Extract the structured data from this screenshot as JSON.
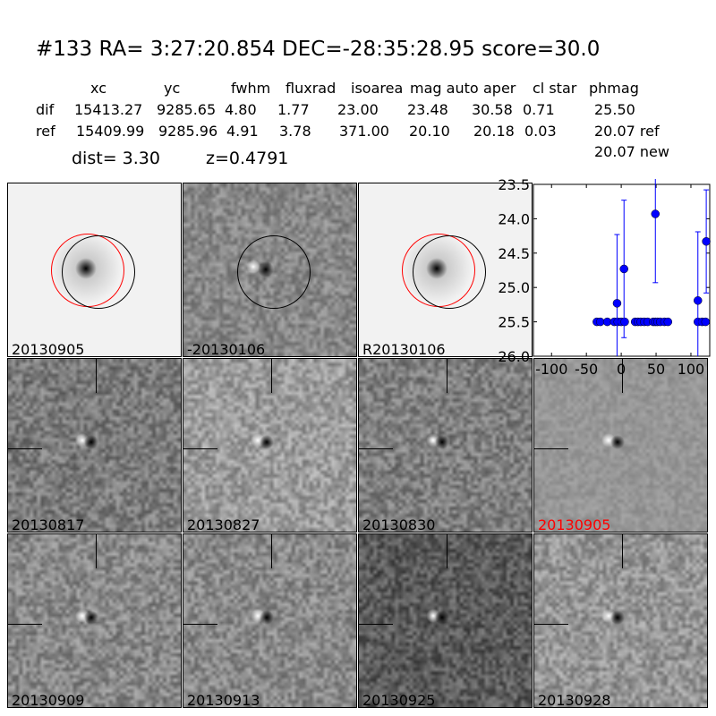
{
  "title": "#133   RA= 3:27:20.854 DEC=-28:35:28.95       score=30.0",
  "table": {
    "headers": [
      "xc",
      "yc",
      "fwhm",
      "fluxrad",
      "isoarea",
      "mag auto",
      "aper",
      "cl star",
      "phmag"
    ],
    "dif": {
      "label": "dif",
      "values": [
        "15413.27",
        "9285.65",
        "4.80",
        "1.77",
        "23.00",
        "23.48",
        "30.58",
        "0.71",
        "25.50"
      ]
    },
    "ref": {
      "label": "ref",
      "values": [
        "15409.99",
        "9285.96",
        "4.91",
        "3.78",
        "371.00",
        "20.10",
        "20.18",
        "0.03",
        "20.07 ref"
      ]
    },
    "new": "20.07 new"
  },
  "dist": "dist=  3.30",
  "z": "z=0.4791",
  "top_stamps": [
    {
      "label": "20130905",
      "bg": "#f2f2f2",
      "circles": [
        "red",
        "black"
      ]
    },
    {
      "label": "-20130106",
      "bg": "#8a8a8a",
      "circles": [
        "black"
      ]
    },
    {
      "label": "R20130106",
      "bg": "#f2f2f2",
      "circles": [
        "red",
        "black"
      ]
    }
  ],
  "epoch_stamps": [
    {
      "label": "20130817",
      "bg": "#7a7a7a",
      "color": "#000000"
    },
    {
      "label": "20130827",
      "bg": "#a8a8a8",
      "color": "#000000"
    },
    {
      "label": "20130830",
      "bg": "#7e7e7e",
      "color": "#000000"
    },
    {
      "label": "20130905",
      "bg": "#9a9a9a",
      "color": "#ff0000"
    },
    {
      "label": "20130909",
      "bg": "#8c8c8c",
      "color": "#000000"
    },
    {
      "label": "20130913",
      "bg": "#8e8e8e",
      "color": "#000000"
    },
    {
      "label": "20130925",
      "bg": "#4a4a4a",
      "color": "#000000"
    },
    {
      "label": "20130928",
      "bg": "#9e9e9e",
      "color": "#000000"
    }
  ],
  "chart_data": {
    "type": "scatter",
    "xlim": [
      -126,
      127
    ],
    "ylim": [
      26.0,
      23.5
    ],
    "y_inverted": true,
    "xticks": [
      "-100",
      "-50",
      "0",
      "50",
      "100"
    ],
    "xtick_values": [
      -100,
      -50,
      0,
      50,
      100
    ],
    "yticks": [
      "23.5",
      "24.0",
      "24.5",
      "25.0",
      "25.5",
      "26.0"
    ],
    "ytick_values": [
      23.5,
      24.0,
      24.5,
      25.0,
      25.5,
      26.0
    ],
    "color": "#0000ff",
    "points": [
      {
        "x": -35,
        "y": 25.5,
        "err": 0
      },
      {
        "x": -30,
        "y": 25.5,
        "err": 0
      },
      {
        "x": -20,
        "y": 25.5,
        "err": 0
      },
      {
        "x": -10,
        "y": 25.5,
        "err": 0
      },
      {
        "x": -5,
        "y": 25.5,
        "err": 0
      },
      {
        "x": 0,
        "y": 25.5,
        "err": 0
      },
      {
        "x": 5,
        "y": 25.5,
        "err": 0
      },
      {
        "x": 20,
        "y": 25.5,
        "err": 0
      },
      {
        "x": 24,
        "y": 25.5,
        "err": 0
      },
      {
        "x": 28,
        "y": 25.5,
        "err": 0
      },
      {
        "x": 33,
        "y": 25.5,
        "err": 0
      },
      {
        "x": 38,
        "y": 25.5,
        "err": 0
      },
      {
        "x": 46,
        "y": 25.5,
        "err": 0
      },
      {
        "x": 49,
        "y": 25.5,
        "err": 0
      },
      {
        "x": 52,
        "y": 25.5,
        "err": 0
      },
      {
        "x": 56,
        "y": 25.5,
        "err": 0
      },
      {
        "x": 62,
        "y": 25.5,
        "err": 0
      },
      {
        "x": 67,
        "y": 25.5,
        "err": 0
      },
      {
        "x": 110,
        "y": 25.5,
        "err": 0
      },
      {
        "x": 116,
        "y": 25.5,
        "err": 0
      },
      {
        "x": 121,
        "y": 25.5,
        "err": 0
      },
      {
        "x": -6,
        "y": 25.23,
        "err": 1.0
      },
      {
        "x": 4,
        "y": 24.73,
        "err": 1.0
      },
      {
        "x": 49,
        "y": 23.93,
        "err": 1.0
      },
      {
        "x": 110,
        "y": 25.19,
        "err": 1.0
      },
      {
        "x": 122,
        "y": 24.33,
        "err": 0.75
      }
    ]
  }
}
